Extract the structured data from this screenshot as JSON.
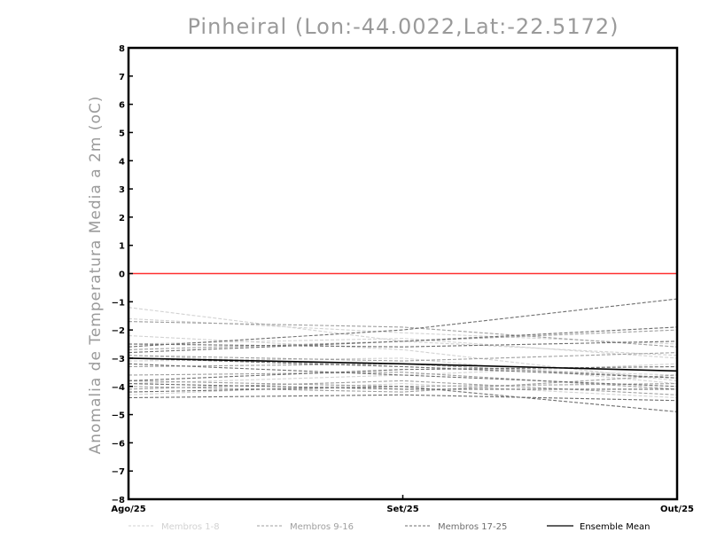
{
  "chart_data": {
    "type": "line",
    "title": "Pinheiral (Lon:-44.0022,Lat:-22.5172)",
    "ylabel": "Anomalia de Temperatura Media a 2m (oC)",
    "xlabel": "",
    "categories": [
      "Ago/25",
      "Set/25",
      "Out/25"
    ],
    "ylim": [
      -8,
      8
    ],
    "yticks": [
      -8,
      -7,
      -6,
      -5,
      -4,
      -3,
      -2,
      -1,
      0,
      1,
      2,
      3,
      4,
      5,
      6,
      7,
      8
    ],
    "grid": false,
    "reference_line": {
      "y": 0,
      "color": "#ff3030"
    },
    "legend": [
      {
        "label": "Membros 1-8",
        "color": "#d2d2d2",
        "dash": true
      },
      {
        "label": "Membros 9-16",
        "color": "#9f9f9f",
        "dash": true
      },
      {
        "label": "Membros 17-25",
        "color": "#6e6e6e",
        "dash": true
      },
      {
        "label": "Ensemble Mean",
        "color": "#000000",
        "dash": false
      }
    ],
    "series": [
      {
        "group": 1,
        "values": [
          -1.2,
          -2.4,
          -2.9
        ]
      },
      {
        "group": 1,
        "values": [
          -1.6,
          -2.1,
          -2.5
        ]
      },
      {
        "group": 1,
        "values": [
          -2.2,
          -2.7,
          -3.8
        ]
      },
      {
        "group": 1,
        "values": [
          -2.5,
          -2.3,
          -3.0
        ]
      },
      {
        "group": 1,
        "values": [
          -2.9,
          -3.3,
          -3.6
        ]
      },
      {
        "group": 1,
        "values": [
          -3.1,
          -3.0,
          -3.9
        ]
      },
      {
        "group": 1,
        "values": [
          -3.9,
          -3.6,
          -3.2
        ]
      },
      {
        "group": 1,
        "values": [
          -4.3,
          -3.9,
          -4.4
        ]
      },
      {
        "group": 2,
        "values": [
          -1.7,
          -1.9,
          -2.6
        ]
      },
      {
        "group": 2,
        "values": [
          -2.7,
          -2.4,
          -2.0
        ]
      },
      {
        "group": 2,
        "values": [
          -2.9,
          -3.1,
          -2.8
        ]
      },
      {
        "group": 2,
        "values": [
          -3.3,
          -3.2,
          -3.7
        ]
      },
      {
        "group": 2,
        "values": [
          -3.6,
          -3.5,
          -4.1
        ]
      },
      {
        "group": 2,
        "values": [
          -4.0,
          -4.2,
          -3.6
        ]
      },
      {
        "group": 2,
        "values": [
          -4.1,
          -3.8,
          -4.3
        ]
      },
      {
        "group": 2,
        "values": [
          -3.8,
          -4.0,
          -3.9
        ]
      },
      {
        "group": 3,
        "values": [
          -2.6,
          -2.0,
          -0.9
        ]
      },
      {
        "group": 3,
        "values": [
          -2.8,
          -2.4,
          -1.9
        ]
      },
      {
        "group": 3,
        "values": [
          -2.5,
          -2.6,
          -2.4
        ]
      },
      {
        "group": 3,
        "values": [
          -3.0,
          -3.3,
          -3.7
        ]
      },
      {
        "group": 3,
        "values": [
          -3.2,
          -3.6,
          -4.0
        ]
      },
      {
        "group": 3,
        "values": [
          -3.9,
          -4.1,
          -4.1
        ]
      },
      {
        "group": 3,
        "values": [
          -4.2,
          -4.0,
          -4.9
        ]
      },
      {
        "group": 3,
        "values": [
          -4.4,
          -4.3,
          -4.5
        ]
      },
      {
        "group": 3,
        "values": [
          -3.8,
          -3.4,
          -3.3
        ]
      },
      {
        "group": 0,
        "name": "Ensemble Mean",
        "values": [
          -3.0,
          -3.2,
          -3.45
        ]
      }
    ]
  }
}
